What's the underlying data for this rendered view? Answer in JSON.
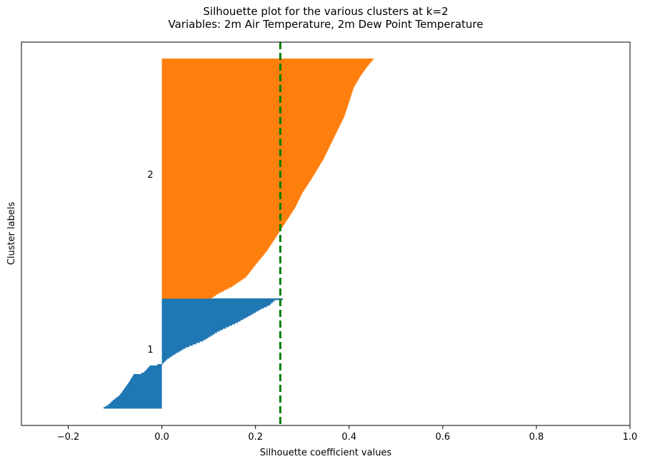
{
  "chart_data": {
    "type": "bar",
    "orientation": "horizontal",
    "title": "Silhouette plot for the various clusters at k=2",
    "subtitle": "Variables: 2m Air Temperature, 2m Dew Point Temperature",
    "xlabel": "Silhouette coefficient values",
    "ylabel": "Cluster labels",
    "xlim": [
      -0.3,
      1.0
    ],
    "xticks": [
      "−0.2",
      "0.0",
      "0.2",
      "0.4",
      "0.6",
      "0.8",
      "1.0"
    ],
    "xtick_values": [
      -0.2,
      0.0,
      0.2,
      0.4,
      0.6,
      0.8,
      1.0
    ],
    "grid": false,
    "average_silhouette": 0.253,
    "average_line_color": "#008000",
    "series": [
      {
        "label": "1",
        "color": "#1f77b4",
        "profile": [
          [
            0.0,
            0.267
          ],
          [
            0.02,
            0.24
          ],
          [
            0.06,
            0.23
          ],
          [
            0.1,
            0.21
          ],
          [
            0.15,
            0.19
          ],
          [
            0.22,
            0.16
          ],
          [
            0.3,
            0.12
          ],
          [
            0.38,
            0.09
          ],
          [
            0.45,
            0.05
          ],
          [
            0.5,
            0.03
          ],
          [
            0.55,
            0.012
          ],
          [
            0.6,
            0.0
          ],
          [
            0.61,
            -0.025
          ],
          [
            0.68,
            -0.04
          ],
          [
            0.69,
            -0.06
          ],
          [
            0.76,
            -0.07
          ],
          [
            0.82,
            -0.08
          ],
          [
            0.88,
            -0.09
          ],
          [
            0.93,
            -0.105
          ],
          [
            0.97,
            -0.115
          ],
          [
            1.0,
            -0.127
          ]
        ]
      },
      {
        "label": "2",
        "color": "#ff7f0e",
        "profile": [
          [
            0.0,
            0.453
          ],
          [
            0.03,
            0.44
          ],
          [
            0.07,
            0.425
          ],
          [
            0.12,
            0.41
          ],
          [
            0.18,
            0.4
          ],
          [
            0.24,
            0.39
          ],
          [
            0.3,
            0.375
          ],
          [
            0.36,
            0.36
          ],
          [
            0.42,
            0.345
          ],
          [
            0.5,
            0.32
          ],
          [
            0.56,
            0.3
          ],
          [
            0.62,
            0.285
          ],
          [
            0.68,
            0.265
          ],
          [
            0.74,
            0.245
          ],
          [
            0.8,
            0.225
          ],
          [
            0.86,
            0.2
          ],
          [
            0.91,
            0.18
          ],
          [
            0.95,
            0.15
          ],
          [
            0.98,
            0.12
          ],
          [
            1.0,
            0.105
          ]
        ]
      }
    ]
  }
}
